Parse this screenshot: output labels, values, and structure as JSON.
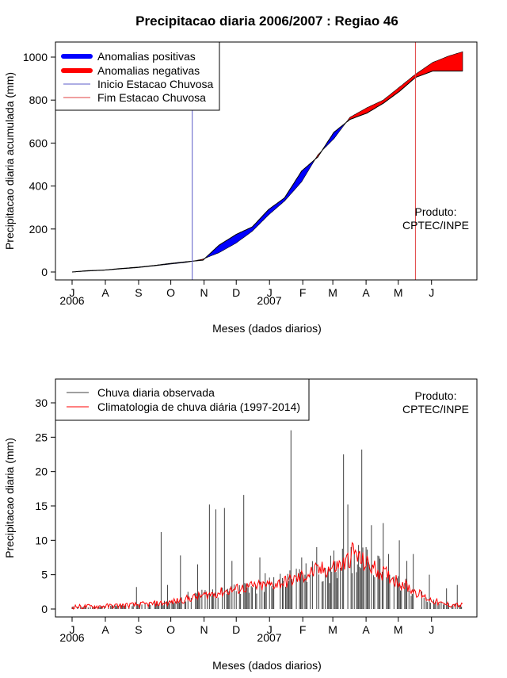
{
  "title": "Precipitacao diaria 2006/2007 : Regiao 46",
  "colors": {
    "positive": "#0000ff",
    "negative": "#ff0000",
    "onset": "#5b5bc8",
    "end": "#e04040",
    "observed": "#404040",
    "climatology": "#ff0000"
  },
  "months": [
    "J",
    "A",
    "S",
    "O",
    "N",
    "D",
    "J",
    "F",
    "M",
    "A",
    "M",
    "J"
  ],
  "years": [
    "2006",
    "2007"
  ],
  "product_label": "Produto:",
  "product_name": "CPTEC/INPE",
  "chart_data": [
    {
      "type": "area",
      "title": "Precipitacao diaria 2006/2007 : Regiao 46",
      "xlabel": "Meses (dados diarios)",
      "ylabel": "Precipitacao diaria acumulada (mm)",
      "xlim": [
        0,
        365
      ],
      "ylim": [
        0,
        1050
      ],
      "yticks": [
        0,
        200,
        400,
        600,
        800,
        1000
      ],
      "legend": [
        {
          "label": "Anomalias positivas",
          "kind": "thick",
          "color": "#0000ff"
        },
        {
          "label": "Anomalias negativas",
          "kind": "thick",
          "color": "#ff0000"
        },
        {
          "label": "Inicio Estacao Chuvosa",
          "kind": "thin",
          "color": "#5b5bc8"
        },
        {
          "label": "Fim Estacao Chuvosa",
          "kind": "thin",
          "color": "#e04040"
        }
      ],
      "legend_position": "top-left",
      "onset_day": 112,
      "end_day": 320,
      "day": [
        0,
        14,
        30,
        45,
        61,
        76,
        92,
        107,
        122,
        137,
        153,
        168,
        183,
        198,
        214,
        229,
        244,
        259,
        275,
        290,
        305,
        320,
        336,
        351,
        364
      ],
      "observed_cum": [
        0,
        6,
        9,
        16,
        22,
        30,
        40,
        48,
        55,
        125,
        175,
        210,
        290,
        345,
        470,
        535,
        650,
        710,
        740,
        785,
        840,
        905,
        935,
        935,
        935
      ],
      "climatology_cum": [
        0,
        4,
        8,
        14,
        20,
        28,
        37,
        45,
        60,
        90,
        135,
        190,
        265,
        330,
        420,
        545,
        620,
        720,
        765,
        800,
        860,
        920,
        975,
        1005,
        1025
      ]
    },
    {
      "type": "line",
      "xlabel": "Meses (dados diarios)",
      "ylabel": "Precipitacao diaria (mm)",
      "xlim": [
        0,
        365
      ],
      "ylim": [
        0,
        32
      ],
      "yticks": [
        0,
        5,
        10,
        15,
        20,
        25,
        30
      ],
      "legend_position": "top-left",
      "series": [
        {
          "name": "Chuva diaria observada",
          "style": "vertical-bars",
          "color": "#404040",
          "peaks": [
            [
              60,
              3.2
            ],
            [
              83,
              11.2
            ],
            [
              89,
              3.5
            ],
            [
              101,
              7.8
            ],
            [
              108,
              2.5
            ],
            [
              117,
              6.5
            ],
            [
              121,
              2.8
            ],
            [
              128,
              15.2
            ],
            [
              134,
              14.5
            ],
            [
              142,
              14.7
            ],
            [
              149,
              7.0
            ],
            [
              160,
              16.6
            ],
            [
              175,
              7.5
            ],
            [
              180,
              5.2
            ],
            [
              196,
              4.5
            ],
            [
              204,
              26.0
            ],
            [
              214,
              7.5
            ],
            [
              222,
              5.0
            ],
            [
              228,
              9.0
            ],
            [
              236,
              6.0
            ],
            [
              244,
              8.5
            ],
            [
              250,
              6.0
            ],
            [
              253,
              22.5
            ],
            [
              257,
              15.2
            ],
            [
              260,
              9.0
            ],
            [
              263,
              8.0
            ],
            [
              266,
              6.5
            ],
            [
              270,
              23.2
            ],
            [
              274,
              9.0
            ],
            [
              279,
              12.2
            ],
            [
              290,
              12.5
            ],
            [
              295,
              8.0
            ],
            [
              305,
              10.0
            ],
            [
              312,
              7.0
            ],
            [
              318,
              8.0
            ],
            [
              333,
              5.0
            ],
            [
              349,
              3.0
            ],
            [
              359,
              3.5
            ]
          ]
        },
        {
          "name": "Climatologia de chuva diária (1997-2014)",
          "style": "line",
          "color": "#ff0000",
          "x": [
            0,
            30,
            60,
            90,
            105,
            120,
            135,
            150,
            165,
            180,
            195,
            210,
            225,
            240,
            255,
            262,
            270,
            285,
            300,
            315,
            330,
            345,
            364
          ],
          "values": [
            0.3,
            0.4,
            0.6,
            0.9,
            1.4,
            1.9,
            2.3,
            2.8,
            3.2,
            3.4,
            3.8,
            4.4,
            5.4,
            5.9,
            6.6,
            8.4,
            6.9,
            5.6,
            4.4,
            3.0,
            1.6,
            0.7,
            0.5
          ]
        }
      ]
    }
  ]
}
